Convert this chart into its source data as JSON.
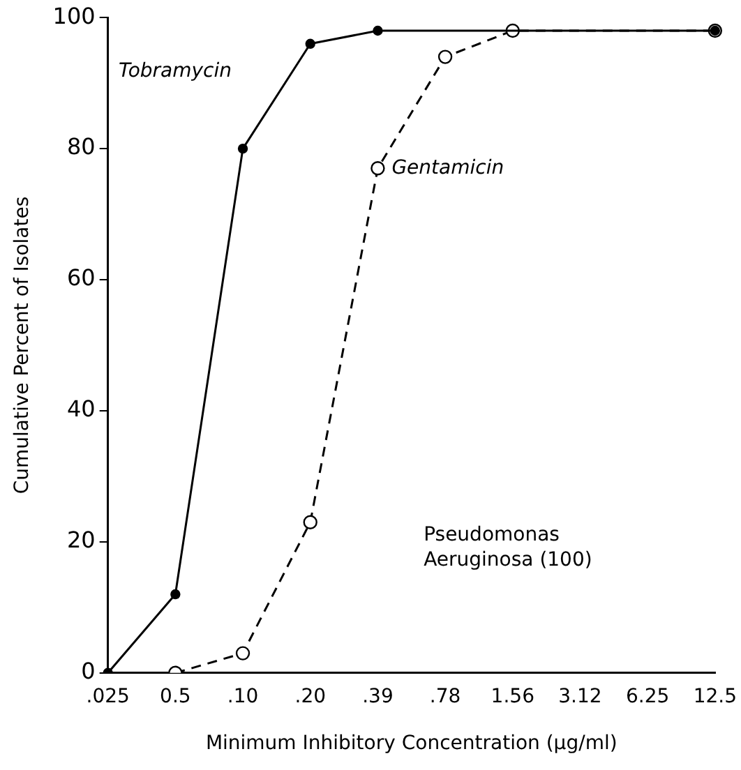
{
  "chart_data": {
    "type": "line",
    "xlabel": "Minimum Inhibitory Concentration (μg/ml)",
    "ylabel": "Cumulative Percent of Isolates",
    "categories": [
      ".025",
      "0.5",
      ".10",
      ".20",
      ".39",
      ".78",
      "1.56",
      "3.12",
      "6.25",
      "12.5"
    ],
    "series": [
      {
        "name": "Tobramycin",
        "color": "#000000",
        "line_style": "solid",
        "values": [
          0,
          12,
          80,
          96,
          98,
          null,
          null,
          null,
          null,
          98
        ]
      },
      {
        "name": "Gentamicin",
        "color": "#000000",
        "line_style": "dashed",
        "values": [
          null,
          0,
          3,
          23,
          77,
          94,
          98,
          null,
          null,
          98
        ]
      }
    ],
    "ylim": [
      0,
      100
    ],
    "yticks": [
      0,
      20,
      40,
      60,
      80,
      100
    ],
    "grid": false,
    "legend": false,
    "marker": "circle",
    "annotations": [
      "Pseudomonas\nAeruginosa (100)"
    ]
  }
}
